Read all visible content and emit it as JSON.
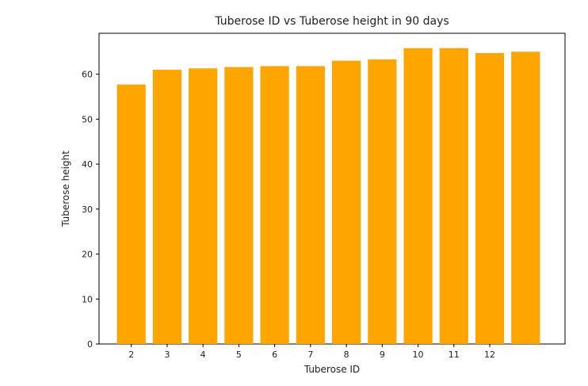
{
  "chart_data": {
    "type": "bar",
    "title": "Tuberose ID vs Tuberose height in 90 days",
    "xlabel": "Tuberose ID",
    "ylabel": "Tuberose height",
    "bar_x": [
      2,
      3,
      4,
      5,
      6,
      7,
      8,
      9,
      10,
      11,
      12,
      13
    ],
    "values": [
      57.7,
      61.0,
      61.3,
      61.6,
      61.8,
      61.8,
      63.0,
      63.3,
      65.8,
      65.8,
      64.7,
      65.0
    ],
    "xticks": [
      "2",
      "3",
      "4",
      "5",
      "6",
      "7",
      "8",
      "9",
      "10",
      "11",
      "12"
    ],
    "yticks": [
      "0",
      "10",
      "20",
      "30",
      "40",
      "50",
      "60"
    ],
    "xlim": [
      1.1,
      14.1
    ],
    "ylim": [
      0,
      69.1
    ],
    "color": "#ffa500",
    "grid": false,
    "legend": "none"
  }
}
